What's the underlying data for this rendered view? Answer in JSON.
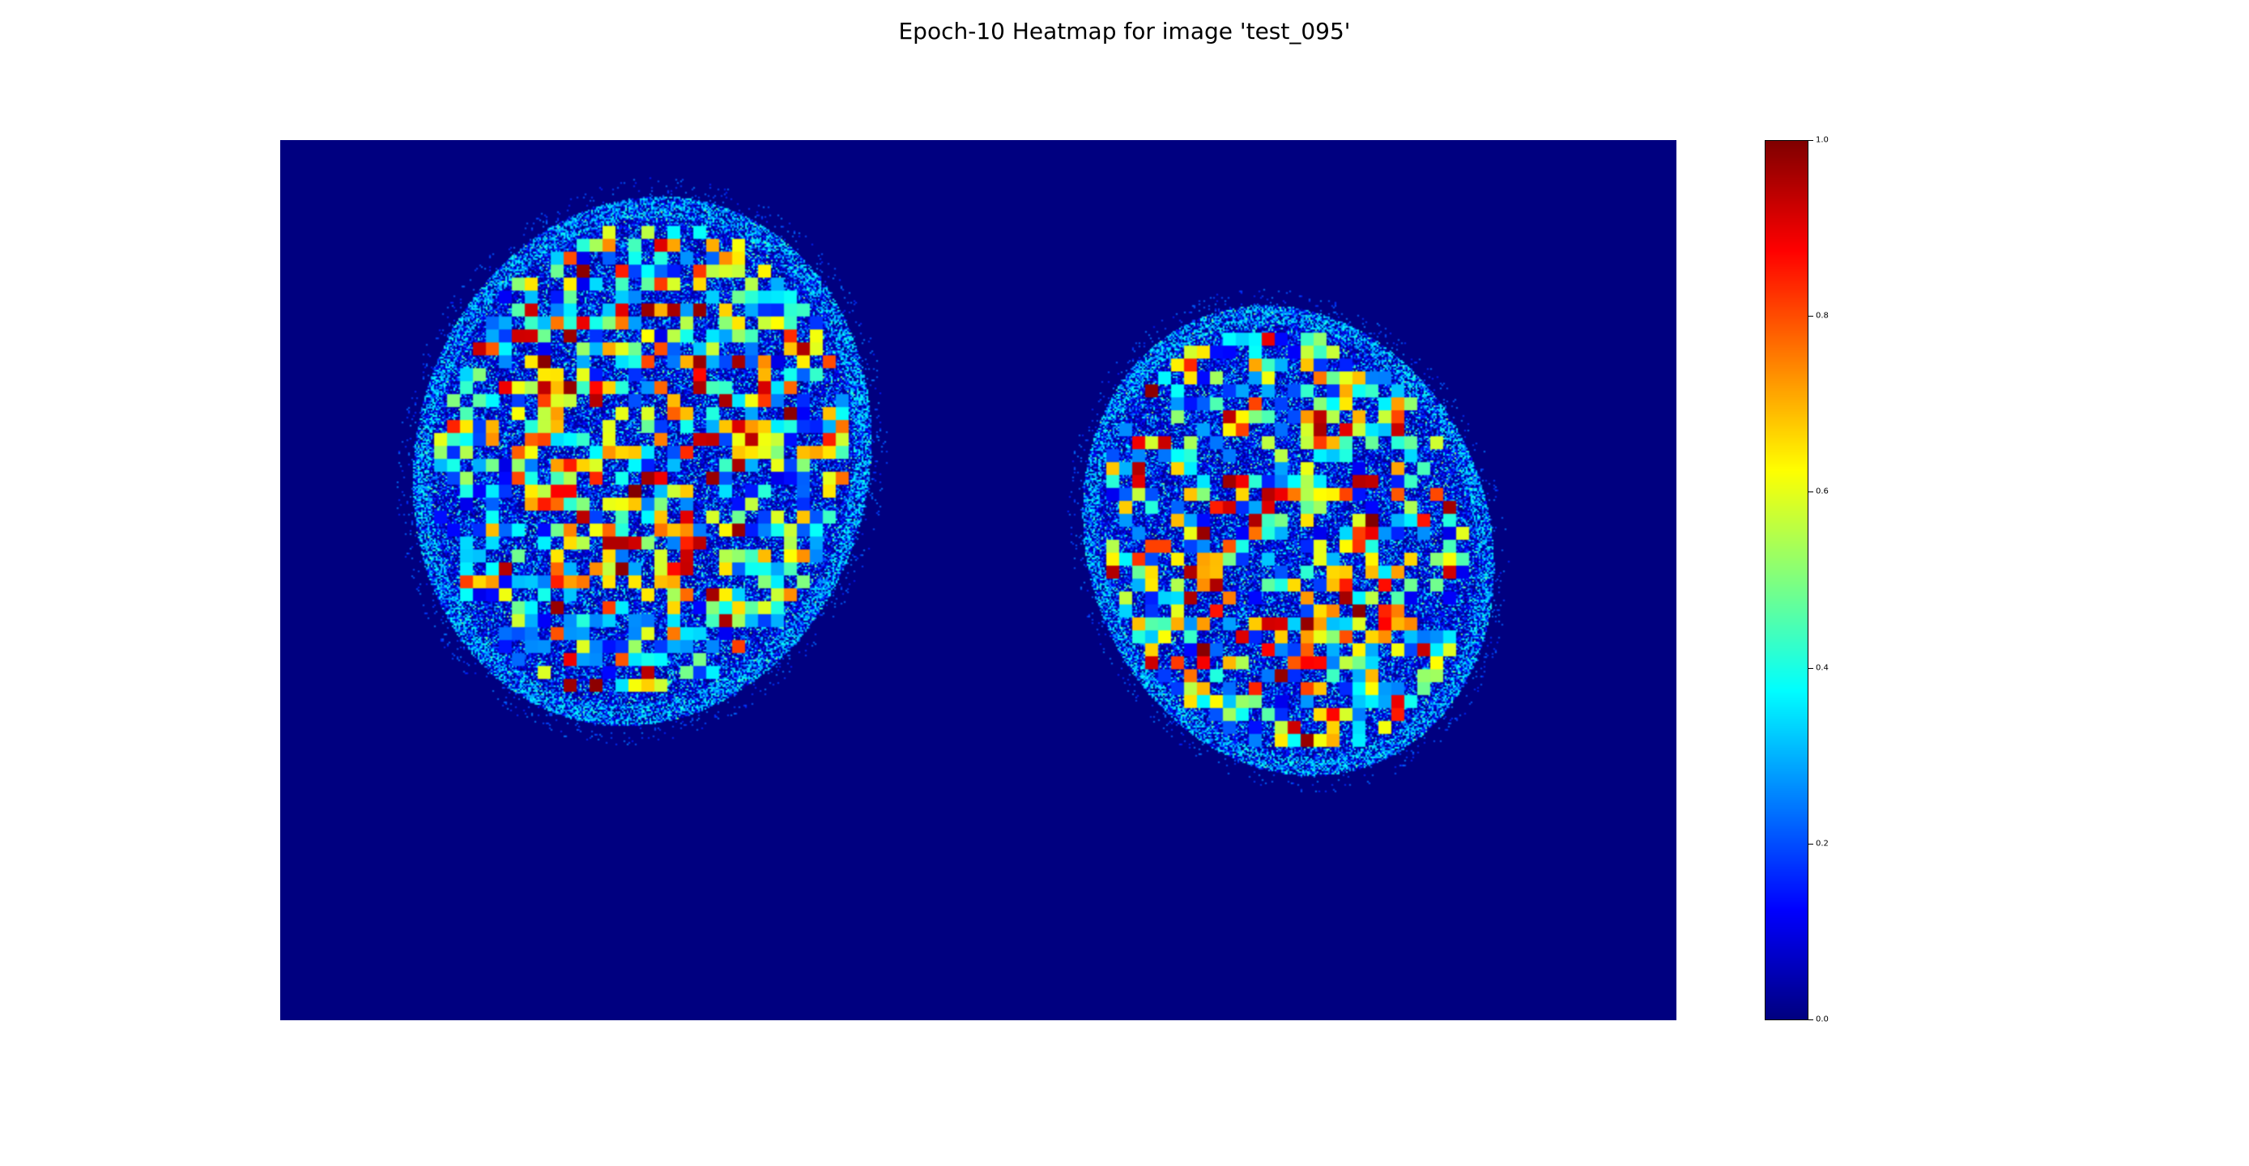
{
  "chart_data": {
    "type": "heatmap",
    "title": "Epoch-10 Heatmap for image 'test_095'",
    "xlabel": "",
    "ylabel": "",
    "axes_visible": false,
    "colormap": "jet",
    "value_range": [
      0.0,
      1.0
    ],
    "colorbar": {
      "ticks": [
        0.0,
        0.2,
        0.4,
        0.6,
        0.8,
        1.0
      ],
      "tick_labels": [
        "0.0",
        "0.2",
        "0.4",
        "0.6",
        "0.8",
        "1.0"
      ],
      "placement": "right"
    },
    "regions": [
      {
        "name": "left-blob",
        "description_value_range": [
          0.0,
          1.0
        ]
      },
      {
        "name": "right-blob",
        "description_value_range": [
          0.0,
          1.0
        ]
      }
    ],
    "background_value": 0.0
  },
  "colors": {
    "background_low": "#00007f",
    "high": "#7f0000"
  }
}
